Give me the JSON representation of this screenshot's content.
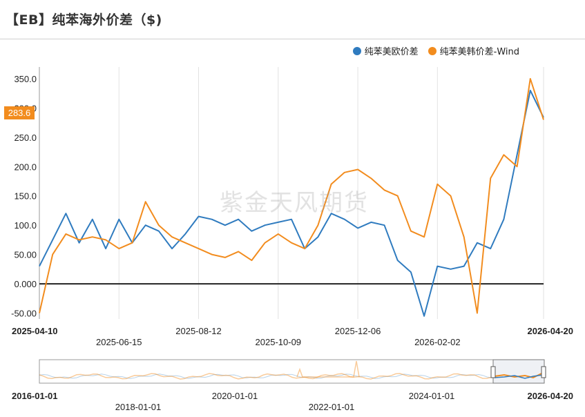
{
  "title": "【EB】纯苯海外价差（$)",
  "watermark": "紫金天风期货",
  "last_value_label": "283.6",
  "colors": {
    "series_a": "#2f7bbf",
    "series_b": "#f28c1e",
    "zero_line": "#222222",
    "grid": "#dcdcdc"
  },
  "chart_data": {
    "type": "line",
    "title": "",
    "xlabel": "",
    "ylabel": "",
    "ylim": [
      -60,
      370
    ],
    "yticks": [
      "350.0",
      "300.0",
      "250.0",
      "200.0",
      "150.0",
      "100.0",
      "50.00",
      "0.000",
      "-50.00"
    ],
    "ytick_values": [
      350,
      300,
      250,
      200,
      150,
      100,
      50,
      0,
      -50
    ],
    "xticks": [
      "2025-04-10",
      "2025-06-15",
      "2025-08-12",
      "2025-10-09",
      "2025-12-06",
      "2026-02-02",
      "2026-04-20"
    ],
    "legend_position": "top-right",
    "grid": true,
    "x": [
      "2025-04-10",
      "2025-04-20",
      "2025-05-01",
      "2025-05-10",
      "2025-05-20",
      "2025-06-01",
      "2025-06-10",
      "2025-06-20",
      "2025-07-01",
      "2025-07-10",
      "2025-07-20",
      "2025-08-01",
      "2025-08-12",
      "2025-08-20",
      "2025-09-01",
      "2025-09-10",
      "2025-09-20",
      "2025-10-01",
      "2025-10-09",
      "2025-10-20",
      "2025-11-01",
      "2025-11-10",
      "2025-11-20",
      "2025-12-01",
      "2025-12-06",
      "2025-12-15",
      "2025-12-25",
      "2026-01-05",
      "2026-01-15",
      "2026-01-25",
      "2026-02-02",
      "2026-02-12",
      "2026-02-22",
      "2026-03-01",
      "2026-03-10",
      "2026-03-20",
      "2026-04-01",
      "2026-04-10",
      "2026-04-20"
    ],
    "series": [
      {
        "name": "纯苯美欧价差",
        "values": [
          30,
          75,
          120,
          70,
          110,
          60,
          110,
          70,
          100,
          90,
          60,
          85,
          115,
          110,
          100,
          110,
          90,
          100,
          105,
          110,
          60,
          80,
          120,
          110,
          95,
          105,
          100,
          40,
          20,
          -55,
          30,
          25,
          30,
          70,
          60,
          110,
          220,
          330,
          283.6
        ]
      },
      {
        "name": "纯苯美韩价差-Wind",
        "values": [
          -50,
          50,
          85,
          75,
          80,
          75,
          60,
          70,
          140,
          100,
          80,
          70,
          60,
          50,
          45,
          55,
          40,
          70,
          85,
          70,
          60,
          100,
          170,
          190,
          195,
          180,
          160,
          150,
          90,
          80,
          170,
          150,
          80,
          -50,
          180,
          220,
          200,
          350,
          280
        ]
      }
    ]
  },
  "navigator": {
    "xticks": [
      "2016-01-01",
      "2018-01-01",
      "2020-01-01",
      "2022-01-01",
      "2024-01-01",
      "2026-04-20"
    ]
  }
}
